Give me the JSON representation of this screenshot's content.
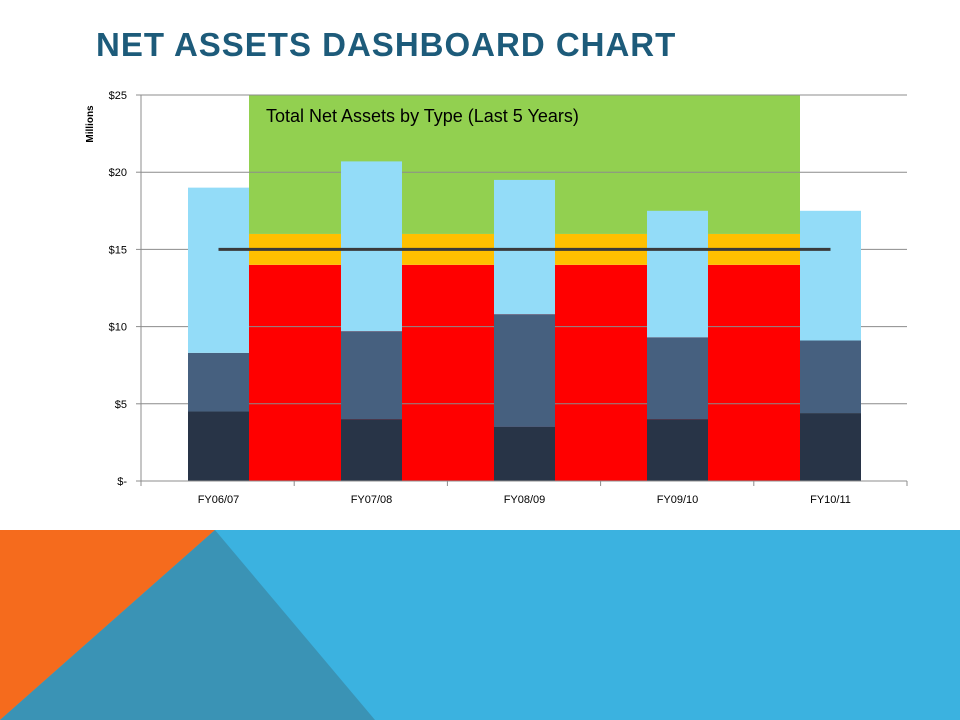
{
  "slide": {
    "title": "NET ASSETS DASHBOARD CHART"
  },
  "colors": {
    "title": "#1d5b7a",
    "band_green": "#92d050",
    "band_orange": "#ffc000",
    "band_red": "#ff0000",
    "series_bottom": "#283447",
    "series_middle": "#46607f",
    "series_top": "#93dcf8",
    "target_line": "#3a3a3a",
    "footer_blue": "#3bb2e0",
    "footer_orange": "#f56b1d",
    "footer_teal": "#3a93b5"
  },
  "chart_data": {
    "type": "bar",
    "stacked": true,
    "title": "Total Net Assets by Type (Last 5 Years)",
    "ylabel": "Millions",
    "ylim": [
      0,
      25
    ],
    "y_ticks": [
      0,
      5,
      10,
      15,
      20,
      25
    ],
    "y_tick_labels": [
      "$-",
      "$5",
      "$10",
      "$15",
      "$20",
      "$25"
    ],
    "categories": [
      "FY06/07",
      "FY07/08",
      "FY08/09",
      "FY09/10",
      "FY10/11"
    ],
    "series": [
      {
        "values": [
          4.5,
          4.0,
          3.5,
          4.0,
          4.4
        ]
      },
      {
        "values": [
          3.8,
          5.7,
          7.3,
          5.3,
          4.7
        ]
      },
      {
        "values": [
          10.7,
          11.0,
          8.7,
          8.2,
          8.4
        ]
      }
    ],
    "reference_bands": [
      {
        "from": 0,
        "to": 14
      },
      {
        "from": 14,
        "to": 16
      },
      {
        "from": 16,
        "to": 25
      }
    ],
    "target_line": 15,
    "grid": true,
    "legend": "none"
  }
}
